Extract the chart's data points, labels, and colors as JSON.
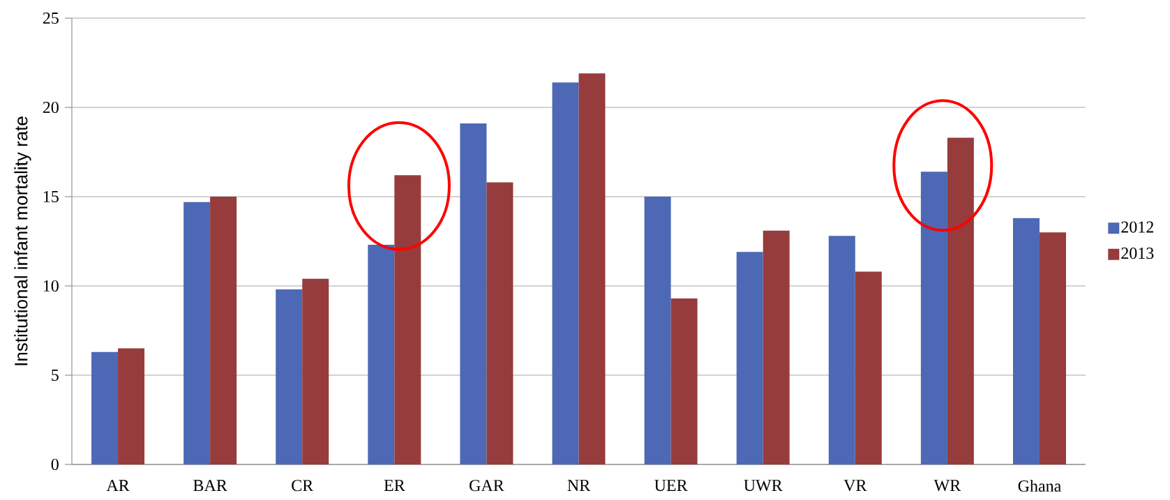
{
  "chart_data": {
    "type": "bar",
    "ylabel": "Institutional infant mortality rate",
    "categories": [
      "AR",
      "BAR",
      "CR",
      "ER",
      "GAR",
      "NR",
      "UER",
      "UWR",
      "VR",
      "WR",
      "Ghana"
    ],
    "series": [
      {
        "name": "2012",
        "color": "#4d68b5",
        "values": [
          6.3,
          14.7,
          9.8,
          12.3,
          19.1,
          21.4,
          15.0,
          11.9,
          12.8,
          16.4,
          13.8
        ]
      },
      {
        "name": "2013",
        "color": "#963c3c",
        "values": [
          6.5,
          15.0,
          10.4,
          16.2,
          15.8,
          21.9,
          9.3,
          13.1,
          10.8,
          18.3,
          13.0
        ]
      }
    ],
    "ylim": [
      0,
      25
    ],
    "yticks": [
      0,
      5,
      10,
      15,
      20,
      25
    ],
    "grid": "y",
    "legend": "right"
  }
}
